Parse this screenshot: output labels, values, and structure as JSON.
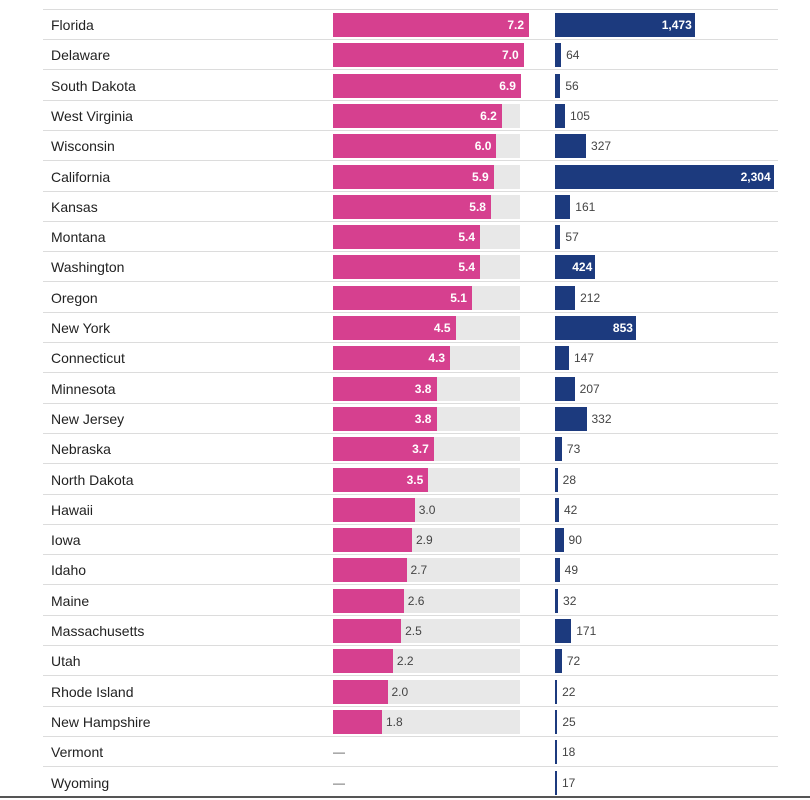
{
  "colors": {
    "primary_bar": "#d6408f",
    "secondary_bar": "#1c3a7e",
    "track": "#e8e8e8"
  },
  "chart_data": {
    "type": "bar",
    "title": "",
    "categories": [
      "Florida",
      "Delaware",
      "South Dakota",
      "West Virginia",
      "Wisconsin",
      "California",
      "Kansas",
      "Montana",
      "Washington",
      "Oregon",
      "New York",
      "Connecticut",
      "Minnesota",
      "New Jersey",
      "Nebraska",
      "North Dakota",
      "Hawaii",
      "Iowa",
      "Idaho",
      "Maine",
      "Massachusetts",
      "Utah",
      "Rhode Island",
      "New Hampshire",
      "Vermont",
      "Wyoming"
    ],
    "series": [
      {
        "name": "rate",
        "xlim": [
          0,
          13
        ],
        "missing_label": "—",
        "values": [
          7.2,
          7.0,
          6.9,
          6.2,
          6.0,
          5.9,
          5.8,
          5.4,
          5.4,
          5.1,
          4.5,
          4.3,
          3.8,
          3.8,
          3.7,
          3.5,
          3.0,
          2.9,
          2.7,
          2.6,
          2.5,
          2.2,
          2.0,
          1.8,
          null,
          null
        ],
        "labels": [
          "7.2",
          "7.0",
          "6.9",
          "6.2",
          "6.0",
          "5.9",
          "5.8",
          "5.4",
          "5.4",
          "5.1",
          "4.5",
          "4.3",
          "3.8",
          "3.8",
          "3.7",
          "3.5",
          "3.0",
          "2.9",
          "2.7",
          "2.6",
          "2.5",
          "2.2",
          "2.0",
          "1.8",
          "—",
          "—"
        ]
      },
      {
        "name": "count",
        "xlim": [
          0,
          2350
        ],
        "values": [
          1473,
          64,
          56,
          105,
          327,
          2304,
          161,
          57,
          424,
          212,
          853,
          147,
          207,
          332,
          73,
          28,
          42,
          90,
          49,
          32,
          171,
          72,
          22,
          25,
          18,
          17
        ],
        "labels": [
          "1,473",
          "64",
          "56",
          "105",
          "327",
          "2,304",
          "161",
          "57",
          "424",
          "212",
          "853",
          "147",
          "207",
          "332",
          "73",
          "28",
          "42",
          "90",
          "49",
          "32",
          "171",
          "72",
          "22",
          "25",
          "18",
          "17"
        ]
      }
    ]
  }
}
